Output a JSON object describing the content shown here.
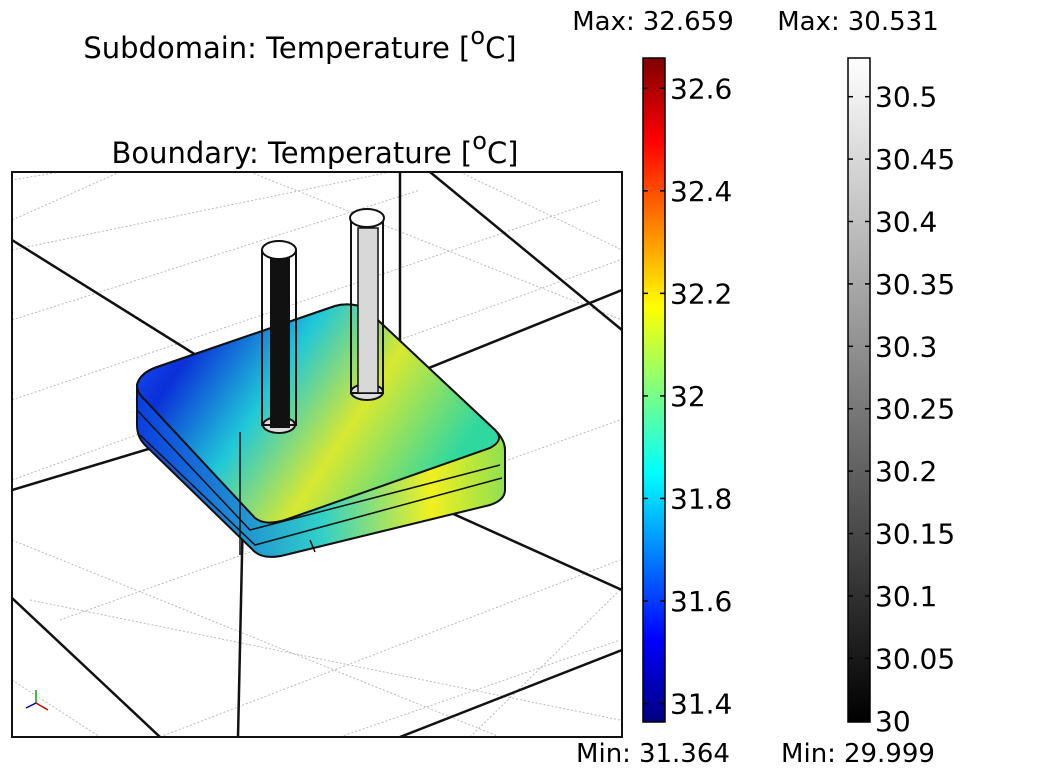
{
  "titles": [
    {
      "prefix": "Subdomain: Temperature [",
      "sup": "o",
      "suffix": "C]"
    },
    {
      "prefix": "Boundary: Temperature [",
      "sup": "o",
      "suffix": "C]"
    }
  ],
  "colorbars": [
    {
      "max_label": "Max:",
      "max": 32.659,
      "min_label": "Min:",
      "min": 31.364,
      "colormap": "jet",
      "ticks": [
        31.4,
        31.6,
        31.8,
        32,
        32.2,
        32.4,
        32.6
      ]
    },
    {
      "max_label": "Max:",
      "max": 30.531,
      "min_label": "Min:",
      "min": 29.999,
      "colormap": "gray",
      "ticks": [
        30,
        30.05,
        30.1,
        30.15,
        30.2,
        30.25,
        30.3,
        30.35,
        30.4,
        30.45,
        30.5
      ]
    }
  ]
}
